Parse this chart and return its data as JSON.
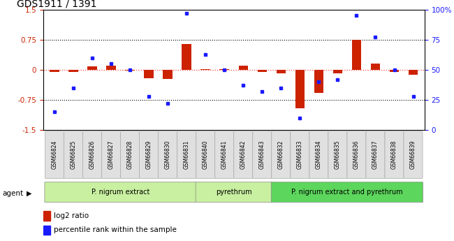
{
  "title": "GDS1911 / 1391",
  "samples": [
    "GSM66824",
    "GSM66825",
    "GSM66826",
    "GSM66827",
    "GSM66828",
    "GSM66829",
    "GSM66830",
    "GSM66831",
    "GSM66840",
    "GSM66841",
    "GSM66842",
    "GSM66843",
    "GSM66832",
    "GSM66833",
    "GSM66834",
    "GSM66835",
    "GSM66836",
    "GSM66837",
    "GSM66838",
    "GSM66839"
  ],
  "log2_ratio": [
    -0.05,
    -0.05,
    0.08,
    0.1,
    -0.02,
    -0.2,
    -0.22,
    0.65,
    0.02,
    0.02,
    0.1,
    -0.05,
    -0.08,
    -0.96,
    -0.58,
    -0.08,
    0.75,
    0.15,
    -0.05,
    -0.12
  ],
  "percentile_rank": [
    15,
    35,
    60,
    55,
    50,
    28,
    22,
    97,
    63,
    50,
    37,
    32,
    35,
    10,
    40,
    42,
    95,
    77,
    50,
    28
  ],
  "group_data": [
    {
      "label": "P. nigrum extract",
      "start": 0,
      "end": 8,
      "color": "#c8f0a0"
    },
    {
      "label": "pyrethrum",
      "start": 8,
      "end": 12,
      "color": "#c8f0a0"
    },
    {
      "label": "P. nigrum extract and pyrethrum",
      "start": 12,
      "end": 20,
      "color": "#5cd65c"
    }
  ],
  "bar_color_red": "#cc2200",
  "dot_color_blue": "#1a1aff",
  "ylim_left": [
    -1.5,
    1.5
  ],
  "yticks_left": [
    -1.5,
    -0.75,
    0,
    0.75,
    1.5
  ],
  "ytick_labels_left": [
    "-1.5",
    "-0.75",
    "0",
    "0.75",
    "1.5"
  ],
  "yticks_right": [
    0,
    25,
    50,
    75,
    100
  ],
  "ytick_labels_right": [
    "0",
    "25",
    "50",
    "75",
    "100%"
  ],
  "legend_items": [
    {
      "label": "log2 ratio",
      "color": "#cc2200"
    },
    {
      "label": "percentile rank within the sample",
      "color": "#1a1aff"
    }
  ],
  "agent_label": "agent",
  "background_color": "#ffffff"
}
